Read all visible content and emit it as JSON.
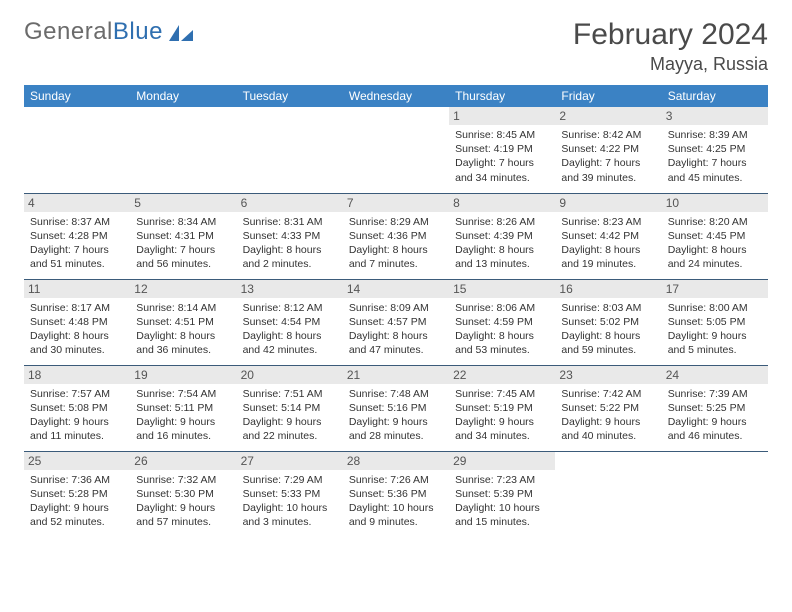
{
  "logo": {
    "text_gray": "General",
    "text_blue": "Blue"
  },
  "title": "February 2024",
  "location": "Mayya, Russia",
  "colors": {
    "header_bg": "#3b82c4",
    "header_text": "#ffffff",
    "daynum_bg": "#e9e9e9",
    "cell_border": "#3b5b7a",
    "body_text": "#333333",
    "logo_gray": "#6b6b6b",
    "logo_blue": "#2f6fb0"
  },
  "day_headers": [
    "Sunday",
    "Monday",
    "Tuesday",
    "Wednesday",
    "Thursday",
    "Friday",
    "Saturday"
  ],
  "weeks": [
    [
      null,
      null,
      null,
      null,
      {
        "n": "1",
        "sr": "Sunrise: 8:45 AM",
        "ss": "Sunset: 4:19 PM",
        "d1": "Daylight: 7 hours",
        "d2": "and 34 minutes."
      },
      {
        "n": "2",
        "sr": "Sunrise: 8:42 AM",
        "ss": "Sunset: 4:22 PM",
        "d1": "Daylight: 7 hours",
        "d2": "and 39 minutes."
      },
      {
        "n": "3",
        "sr": "Sunrise: 8:39 AM",
        "ss": "Sunset: 4:25 PM",
        "d1": "Daylight: 7 hours",
        "d2": "and 45 minutes."
      }
    ],
    [
      {
        "n": "4",
        "sr": "Sunrise: 8:37 AM",
        "ss": "Sunset: 4:28 PM",
        "d1": "Daylight: 7 hours",
        "d2": "and 51 minutes."
      },
      {
        "n": "5",
        "sr": "Sunrise: 8:34 AM",
        "ss": "Sunset: 4:31 PM",
        "d1": "Daylight: 7 hours",
        "d2": "and 56 minutes."
      },
      {
        "n": "6",
        "sr": "Sunrise: 8:31 AM",
        "ss": "Sunset: 4:33 PM",
        "d1": "Daylight: 8 hours",
        "d2": "and 2 minutes."
      },
      {
        "n": "7",
        "sr": "Sunrise: 8:29 AM",
        "ss": "Sunset: 4:36 PM",
        "d1": "Daylight: 8 hours",
        "d2": "and 7 minutes."
      },
      {
        "n": "8",
        "sr": "Sunrise: 8:26 AM",
        "ss": "Sunset: 4:39 PM",
        "d1": "Daylight: 8 hours",
        "d2": "and 13 minutes."
      },
      {
        "n": "9",
        "sr": "Sunrise: 8:23 AM",
        "ss": "Sunset: 4:42 PM",
        "d1": "Daylight: 8 hours",
        "d2": "and 19 minutes."
      },
      {
        "n": "10",
        "sr": "Sunrise: 8:20 AM",
        "ss": "Sunset: 4:45 PM",
        "d1": "Daylight: 8 hours",
        "d2": "and 24 minutes."
      }
    ],
    [
      {
        "n": "11",
        "sr": "Sunrise: 8:17 AM",
        "ss": "Sunset: 4:48 PM",
        "d1": "Daylight: 8 hours",
        "d2": "and 30 minutes."
      },
      {
        "n": "12",
        "sr": "Sunrise: 8:14 AM",
        "ss": "Sunset: 4:51 PM",
        "d1": "Daylight: 8 hours",
        "d2": "and 36 minutes."
      },
      {
        "n": "13",
        "sr": "Sunrise: 8:12 AM",
        "ss": "Sunset: 4:54 PM",
        "d1": "Daylight: 8 hours",
        "d2": "and 42 minutes."
      },
      {
        "n": "14",
        "sr": "Sunrise: 8:09 AM",
        "ss": "Sunset: 4:57 PM",
        "d1": "Daylight: 8 hours",
        "d2": "and 47 minutes."
      },
      {
        "n": "15",
        "sr": "Sunrise: 8:06 AM",
        "ss": "Sunset: 4:59 PM",
        "d1": "Daylight: 8 hours",
        "d2": "and 53 minutes."
      },
      {
        "n": "16",
        "sr": "Sunrise: 8:03 AM",
        "ss": "Sunset: 5:02 PM",
        "d1": "Daylight: 8 hours",
        "d2": "and 59 minutes."
      },
      {
        "n": "17",
        "sr": "Sunrise: 8:00 AM",
        "ss": "Sunset: 5:05 PM",
        "d1": "Daylight: 9 hours",
        "d2": "and 5 minutes."
      }
    ],
    [
      {
        "n": "18",
        "sr": "Sunrise: 7:57 AM",
        "ss": "Sunset: 5:08 PM",
        "d1": "Daylight: 9 hours",
        "d2": "and 11 minutes."
      },
      {
        "n": "19",
        "sr": "Sunrise: 7:54 AM",
        "ss": "Sunset: 5:11 PM",
        "d1": "Daylight: 9 hours",
        "d2": "and 16 minutes."
      },
      {
        "n": "20",
        "sr": "Sunrise: 7:51 AM",
        "ss": "Sunset: 5:14 PM",
        "d1": "Daylight: 9 hours",
        "d2": "and 22 minutes."
      },
      {
        "n": "21",
        "sr": "Sunrise: 7:48 AM",
        "ss": "Sunset: 5:16 PM",
        "d1": "Daylight: 9 hours",
        "d2": "and 28 minutes."
      },
      {
        "n": "22",
        "sr": "Sunrise: 7:45 AM",
        "ss": "Sunset: 5:19 PM",
        "d1": "Daylight: 9 hours",
        "d2": "and 34 minutes."
      },
      {
        "n": "23",
        "sr": "Sunrise: 7:42 AM",
        "ss": "Sunset: 5:22 PM",
        "d1": "Daylight: 9 hours",
        "d2": "and 40 minutes."
      },
      {
        "n": "24",
        "sr": "Sunrise: 7:39 AM",
        "ss": "Sunset: 5:25 PM",
        "d1": "Daylight: 9 hours",
        "d2": "and 46 minutes."
      }
    ],
    [
      {
        "n": "25",
        "sr": "Sunrise: 7:36 AM",
        "ss": "Sunset: 5:28 PM",
        "d1": "Daylight: 9 hours",
        "d2": "and 52 minutes."
      },
      {
        "n": "26",
        "sr": "Sunrise: 7:32 AM",
        "ss": "Sunset: 5:30 PM",
        "d1": "Daylight: 9 hours",
        "d2": "and 57 minutes."
      },
      {
        "n": "27",
        "sr": "Sunrise: 7:29 AM",
        "ss": "Sunset: 5:33 PM",
        "d1": "Daylight: 10 hours",
        "d2": "and 3 minutes."
      },
      {
        "n": "28",
        "sr": "Sunrise: 7:26 AM",
        "ss": "Sunset: 5:36 PM",
        "d1": "Daylight: 10 hours",
        "d2": "and 9 minutes."
      },
      {
        "n": "29",
        "sr": "Sunrise: 7:23 AM",
        "ss": "Sunset: 5:39 PM",
        "d1": "Daylight: 10 hours",
        "d2": "and 15 minutes."
      },
      null,
      null
    ]
  ]
}
